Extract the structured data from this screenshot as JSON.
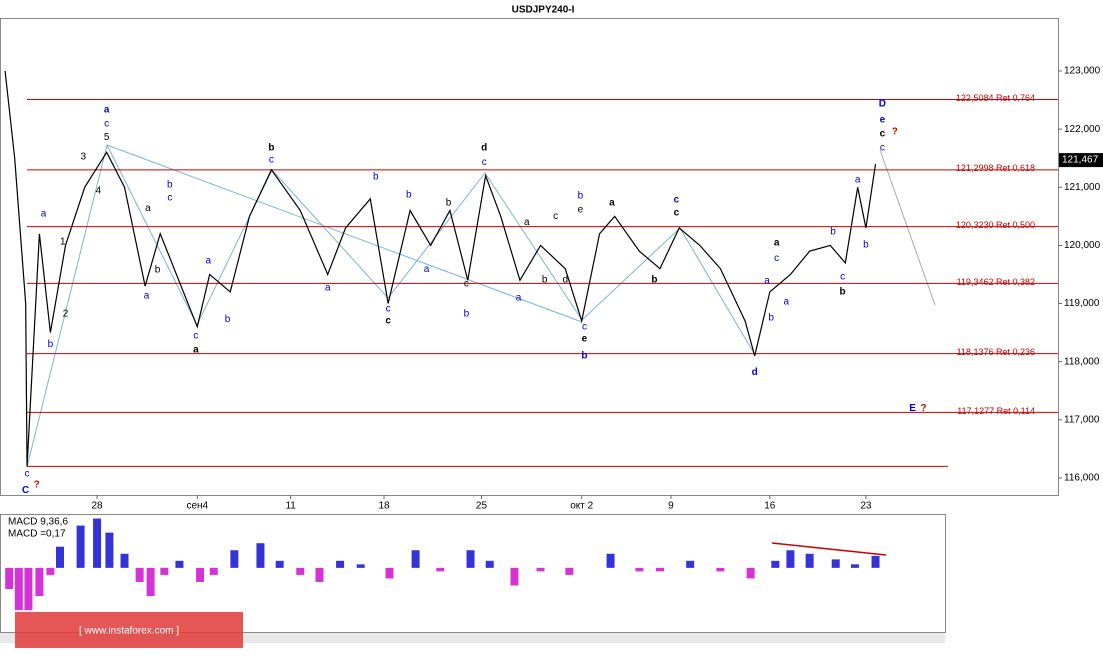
{
  "chart_data": {
    "type": "line",
    "title": "USDJPY240-I",
    "xlim": [
      -7.07,
      69.99
    ],
    "ylim": [
      115.707,
      123.911
    ],
    "xticks": [
      {
        "value": 0,
        "label": "28"
      },
      {
        "value": 7.3,
        "label": "сен4"
      },
      {
        "value": 14.1,
        "label": "11"
      },
      {
        "value": 20.9,
        "label": "18"
      },
      {
        "value": 28.0,
        "label": "25"
      },
      {
        "value": 35.3,
        "label": "окт 2"
      },
      {
        "value": 41.8,
        "label": "9"
      },
      {
        "value": 49.0,
        "label": "16"
      },
      {
        "value": 56.0,
        "label": "23"
      }
    ],
    "yticks": [
      {
        "value": 123,
        "label": "123,000"
      },
      {
        "value": 122,
        "label": "122,000"
      },
      {
        "value": 121,
        "label": "121,000"
      },
      {
        "value": 120,
        "label": "120,000"
      },
      {
        "value": 119,
        "label": "119,000"
      },
      {
        "value": 118,
        "label": "118,000"
      },
      {
        "value": 117,
        "label": "117,000"
      },
      {
        "value": 116,
        "label": "116,000"
      }
    ],
    "series": [
      {
        "color": "#000000",
        "x": [
          -6.7,
          -6.0,
          -5.2,
          -5.1,
          -4.2,
          -3.4,
          -2.3,
          -0.9,
          0.7,
          2.0,
          3.5,
          4.6,
          7.3,
          8.2,
          9.7,
          11.1,
          12.7,
          14.8,
          16.8,
          18.1,
          19.9,
          21.2,
          22.8,
          24.3,
          25.7,
          27.0,
          28.3,
          29.4,
          30.8,
          32.3,
          34.1,
          35.3,
          36.6,
          37.7,
          39.5,
          41.0,
          42.4,
          43.9,
          45.4,
          47.2,
          47.9,
          49.0,
          50.5,
          51.9,
          53.4,
          54.5,
          55.4,
          56.0,
          56.7
        ],
        "values": [
          123.0,
          121.5,
          119.0,
          116.2,
          120.2,
          118.5,
          120.0,
          121.0,
          121.6,
          121.0,
          119.3,
          120.2,
          118.6,
          119.5,
          119.2,
          120.5,
          121.3,
          120.6,
          119.5,
          120.3,
          120.8,
          119.0,
          120.6,
          120.0,
          120.6,
          119.4,
          121.2,
          120.5,
          119.4,
          120.0,
          119.6,
          118.7,
          120.2,
          120.5,
          119.9,
          119.6,
          120.3,
          120.0,
          119.6,
          118.7,
          118.1,
          119.2,
          119.5,
          119.9,
          120.0,
          119.7,
          121.0,
          120.3,
          121.4
        ]
      }
    ],
    "levels": [
      {
        "value": 122.5084,
        "label": "122,5084 Ret 0,764"
      },
      {
        "value": 121.2998,
        "label": "121,2998 Ret 0,618"
      },
      {
        "value": 120.323,
        "label": "120,3230 Ret 0,500"
      },
      {
        "value": 119.3462,
        "label": "119,3462 Ret 0,382"
      },
      {
        "value": 118.1376,
        "label": "118,1376 Ret 0,236"
      },
      {
        "value": 117.1277,
        "label": "117,1277 Ret 0,114"
      },
      {
        "value": 116.2,
        "label": ""
      }
    ],
    "last_price": {
      "value": 121.467,
      "label": "121,467"
    },
    "annotations": [
      {
        "text": "a",
        "x": 0.7,
        "y": 122.33,
        "color": "#0000dd",
        "bold": true
      },
      {
        "text": "c",
        "x": 0.7,
        "y": 122.09,
        "color": "#0000dd",
        "bold": false
      },
      {
        "text": "5",
        "x": 0.7,
        "y": 121.86,
        "color": "#000000",
        "bold": false
      },
      {
        "text": "3",
        "x": -1.0,
        "y": 121.52,
        "color": "#000000",
        "bold": false
      },
      {
        "text": "4",
        "x": 0.1,
        "y": 120.94,
        "color": "#000000",
        "bold": false
      },
      {
        "text": "1",
        "x": -2.5,
        "y": 120.06,
        "color": "#000000",
        "bold": false
      },
      {
        "text": "2",
        "x": -2.3,
        "y": 118.82,
        "color": "#000000",
        "bold": false
      },
      {
        "text": "a",
        "x": -3.9,
        "y": 120.54,
        "color": "#0000dd",
        "bold": false
      },
      {
        "text": "b",
        "x": -3.4,
        "y": 118.3,
        "color": "#0000dd",
        "bold": false
      },
      {
        "text": "c",
        "x": -5.1,
        "y": 116.07,
        "color": "#0000dd",
        "bold": false
      },
      {
        "text": "C",
        "x": -5.2,
        "y": 115.79,
        "color": "#0000dd",
        "bold": true
      },
      {
        "text": "?",
        "x": -4.4,
        "y": 115.88,
        "color": "#dd0000",
        "bold": true
      },
      {
        "text": "b",
        "x": 5.3,
        "y": 121.04,
        "color": "#0000dd",
        "bold": false
      },
      {
        "text": "c",
        "x": 5.3,
        "y": 120.82,
        "color": "#0000dd",
        "bold": false
      },
      {
        "text": "a",
        "x": 3.7,
        "y": 120.64,
        "color": "#000000",
        "bold": false
      },
      {
        "text": "a",
        "x": 3.6,
        "y": 119.13,
        "color": "#0000dd",
        "bold": false
      },
      {
        "text": "b",
        "x": 4.4,
        "y": 119.58,
        "color": "#000000",
        "bold": false
      },
      {
        "text": "c",
        "x": 7.2,
        "y": 118.44,
        "color": "#0000dd",
        "bold": false
      },
      {
        "text": "a",
        "x": 7.2,
        "y": 118.2,
        "color": "#000000",
        "bold": true
      },
      {
        "text": "a",
        "x": 8.1,
        "y": 119.73,
        "color": "#0000dd",
        "bold": false
      },
      {
        "text": "b",
        "x": 9.5,
        "y": 118.73,
        "color": "#0000dd",
        "bold": false
      },
      {
        "text": "b",
        "x": 12.7,
        "y": 121.68,
        "color": "#000000",
        "bold": true
      },
      {
        "text": "c",
        "x": 12.7,
        "y": 121.47,
        "color": "#0000dd",
        "bold": false
      },
      {
        "text": "b",
        "x": 20.3,
        "y": 121.18,
        "color": "#0000dd",
        "bold": false
      },
      {
        "text": "a",
        "x": 16.8,
        "y": 119.27,
        "color": "#0000dd",
        "bold": false
      },
      {
        "text": "c",
        "x": 21.2,
        "y": 118.91,
        "color": "#0000dd",
        "bold": false
      },
      {
        "text": "c",
        "x": 21.2,
        "y": 118.7,
        "color": "#000000",
        "bold": true
      },
      {
        "text": "b",
        "x": 22.7,
        "y": 120.87,
        "color": "#0000dd",
        "bold": false
      },
      {
        "text": "a",
        "x": 24.0,
        "y": 119.59,
        "color": "#0000dd",
        "bold": false
      },
      {
        "text": "b",
        "x": 25.6,
        "y": 120.73,
        "color": "#000000",
        "bold": false
      },
      {
        "text": "d",
        "x": 28.2,
        "y": 121.68,
        "color": "#000000",
        "bold": true
      },
      {
        "text": "c",
        "x": 28.2,
        "y": 121.43,
        "color": "#0000dd",
        "bold": false
      },
      {
        "text": "c",
        "x": 26.9,
        "y": 119.34,
        "color": "#000000",
        "bold": false
      },
      {
        "text": "b",
        "x": 26.9,
        "y": 118.82,
        "color": "#0000dd",
        "bold": false
      },
      {
        "text": "a",
        "x": 31.3,
        "y": 120.4,
        "color": "#000000",
        "bold": false
      },
      {
        "text": "a",
        "x": 30.7,
        "y": 119.1,
        "color": "#0000dd",
        "bold": false
      },
      {
        "text": "b",
        "x": 32.6,
        "y": 119.41,
        "color": "#000000",
        "bold": false
      },
      {
        "text": "c",
        "x": 33.4,
        "y": 120.5,
        "color": "#000000",
        "bold": false
      },
      {
        "text": "d",
        "x": 34.1,
        "y": 119.41,
        "color": "#000000",
        "bold": false
      },
      {
        "text": "b",
        "x": 35.2,
        "y": 120.85,
        "color": "#0000dd",
        "bold": false
      },
      {
        "text": "e",
        "x": 35.2,
        "y": 120.61,
        "color": "#000000",
        "bold": false
      },
      {
        "text": "c",
        "x": 35.5,
        "y": 118.6,
        "color": "#0000dd",
        "bold": false
      },
      {
        "text": "e",
        "x": 35.5,
        "y": 118.39,
        "color": "#000000",
        "bold": true
      },
      {
        "text": "b",
        "x": 35.5,
        "y": 118.1,
        "color": "#0000dd",
        "bold": true
      },
      {
        "text": "a",
        "x": 37.5,
        "y": 120.73,
        "color": "#000000",
        "bold": true
      },
      {
        "text": "c",
        "x": 42.2,
        "y": 120.78,
        "color": "#0000dd",
        "bold": true
      },
      {
        "text": "c",
        "x": 42.2,
        "y": 120.56,
        "color": "#000000",
        "bold": true
      },
      {
        "text": "b",
        "x": 40.6,
        "y": 119.41,
        "color": "#000000",
        "bold": true
      },
      {
        "text": "a",
        "x": 49.5,
        "y": 120.04,
        "color": "#000000",
        "bold": true
      },
      {
        "text": "c",
        "x": 49.5,
        "y": 119.78,
        "color": "#0000dd",
        "bold": false
      },
      {
        "text": "a",
        "x": 48.8,
        "y": 119.39,
        "color": "#0000dd",
        "bold": false
      },
      {
        "text": "b",
        "x": 49.1,
        "y": 118.75,
        "color": "#0000dd",
        "bold": false
      },
      {
        "text": "a",
        "x": 50.2,
        "y": 119.03,
        "color": "#0000dd",
        "bold": false
      },
      {
        "text": "d",
        "x": 47.9,
        "y": 117.82,
        "color": "#0000dd",
        "bold": true
      },
      {
        "text": "b",
        "x": 53.6,
        "y": 120.23,
        "color": "#0000dd",
        "bold": false
      },
      {
        "text": "c",
        "x": 54.3,
        "y": 119.46,
        "color": "#0000dd",
        "bold": false
      },
      {
        "text": "b",
        "x": 54.3,
        "y": 119.2,
        "color": "#000000",
        "bold": true
      },
      {
        "text": "a",
        "x": 55.4,
        "y": 121.13,
        "color": "#0000dd",
        "bold": false
      },
      {
        "text": "b",
        "x": 56.0,
        "y": 120.01,
        "color": "#0000dd",
        "bold": false
      },
      {
        "text": "c",
        "x": 57.2,
        "y": 121.68,
        "color": "#0000dd",
        "bold": false
      },
      {
        "text": "c",
        "x": 57.2,
        "y": 121.92,
        "color": "#000000",
        "bold": true
      },
      {
        "text": "e",
        "x": 57.2,
        "y": 122.16,
        "color": "#0000dd",
        "bold": true
      },
      {
        "text": "D",
        "x": 57.2,
        "y": 122.43,
        "color": "#0000dd",
        "bold": true
      },
      {
        "text": "?",
        "x": 58.1,
        "y": 121.95,
        "color": "#dd0000",
        "bold": true
      },
      {
        "text": "E",
        "x": 59.4,
        "y": 117.2,
        "color": "#0000dd",
        "bold": true
      },
      {
        "text": "?",
        "x": 60.2,
        "y": 117.2,
        "color": "#dd0000",
        "bold": true
      }
    ],
    "macd": {
      "title": "MACD 9,36,6",
      "readout": "MACD =0,17",
      "ylim": [
        -0.91,
        0.75
      ],
      "positive_color": "#0000cc",
      "negative_color": "#cc00cc",
      "x": [
        -6.4,
        -5.7,
        -5.0,
        -4.2,
        -3.4,
        -2.7,
        -1.2,
        0,
        0.9,
        2.0,
        3.1,
        3.9,
        4.9,
        6.0,
        7.5,
        8.5,
        10.0,
        11.9,
        13.3,
        14.8,
        16.2,
        17.7,
        19.2,
        21.3,
        23.2,
        25.0,
        27.2,
        28.6,
        30.4,
        32.3,
        34.4,
        37.4,
        39.5,
        41.0,
        43.2,
        45.4,
        47.6,
        49.4,
        50.5,
        51.9,
        53.8,
        55.2,
        56.7
      ],
      "values": [
        -0.3,
        -0.6,
        -0.6,
        -0.4,
        -0.1,
        0.3,
        0.6,
        0.7,
        0.5,
        0.2,
        -0.2,
        -0.4,
        -0.1,
        0.1,
        -0.2,
        -0.1,
        0.25,
        0.35,
        0.1,
        -0.1,
        -0.2,
        0.1,
        0.05,
        -0.15,
        0.25,
        -0.05,
        0.25,
        0.1,
        -0.25,
        -0.05,
        -0.1,
        0.2,
        -0.05,
        -0.05,
        0.1,
        -0.05,
        -0.15,
        0.1,
        0.25,
        0.2,
        0.12,
        0.05,
        0.17
      ]
    },
    "watermark": "[ www.instaforex.com ]"
  }
}
